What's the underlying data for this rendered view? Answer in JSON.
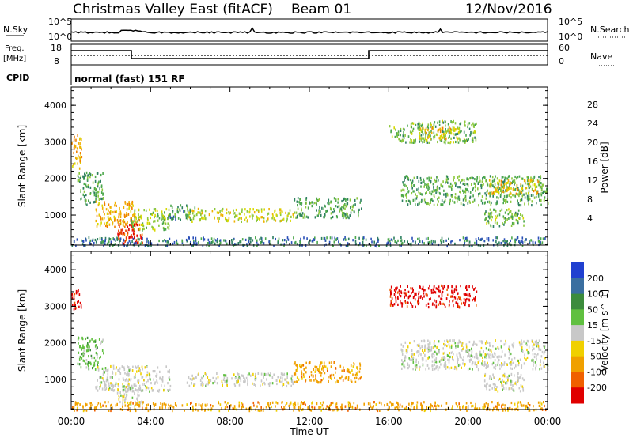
{
  "header": {
    "title": "Christmas Valley East (fitACF)",
    "beam": "Beam 01",
    "date": "12/Nov/2016"
  },
  "top_panels": {
    "nsky_label": "N.Sky",
    "nsky_ticks": [
      "10^5",
      "10^0"
    ],
    "nsearch_label": "N.Search",
    "nsearch_ticks": [
      "10^5",
      "10^0"
    ],
    "freq_label": [
      "Freq.",
      "[MHz]"
    ],
    "freq_ticks": [
      "18",
      "8"
    ],
    "nave_label": "Nave",
    "nave_ticks": [
      "60",
      "0"
    ],
    "cpid_label": "CPID",
    "cpid_text": "normal (fast) 151 RF"
  },
  "chart_data": [
    {
      "type": "heatmap",
      "name": "power",
      "ylabel": "Slant Range [km]",
      "yticks": [
        1000,
        2000,
        3000,
        4000
      ],
      "ylim": [
        180,
        4500
      ],
      "xlabel": "Time UT",
      "xticks": [
        "00:00",
        "04:00",
        "08:00",
        "12:00",
        "16:00",
        "20:00",
        "00:00"
      ],
      "xlim_hours": [
        0,
        24
      ],
      "colorbar": {
        "label": "Power [dB]",
        "ticks": [
          4,
          8,
          12,
          16,
          20,
          24,
          28
        ],
        "range": [
          0,
          30
        ],
        "colors": [
          "#1a1aff",
          "#2a50b8",
          "#2e7f60",
          "#4ca84c",
          "#8cc83c",
          "#d8d800",
          "#f0b000",
          "#f08000",
          "#e84000",
          "#e00000"
        ]
      },
      "regions": [
        {
          "t": [
            0.0,
            0.5
          ],
          "r": [
            2300,
            3300
          ],
          "level": 20
        },
        {
          "t": [
            0.3,
            1.6
          ],
          "r": [
            1300,
            2200
          ],
          "level": 10
        },
        {
          "t": [
            1.2,
            3.2
          ],
          "r": [
            700,
            1400
          ],
          "level": 20
        },
        {
          "t": [
            2.3,
            3.6
          ],
          "r": [
            250,
            900
          ],
          "level": 26
        },
        {
          "t": [
            3.0,
            5.0
          ],
          "r": [
            600,
            1200
          ],
          "level": 14
        },
        {
          "t": [
            4.8,
            6.2
          ],
          "r": [
            900,
            1300
          ],
          "level": 9
        },
        {
          "t": [
            5.8,
            11.2
          ],
          "r": [
            850,
            1200
          ],
          "level": 16
        },
        {
          "t": [
            11.2,
            14.6
          ],
          "r": [
            950,
            1500
          ],
          "level": 10
        },
        {
          "t": [
            16.0,
            20.4
          ],
          "r": [
            3000,
            3600
          ],
          "level": 12
        },
        {
          "t": [
            17.5,
            19.5
          ],
          "r": [
            3100,
            3450
          ],
          "level": 18
        },
        {
          "t": [
            16.6,
            24.0
          ],
          "r": [
            1300,
            2100
          ],
          "level": 11
        },
        {
          "t": [
            21.0,
            23.5
          ],
          "r": [
            1600,
            2000
          ],
          "level": 18
        },
        {
          "t": [
            20.8,
            22.8
          ],
          "r": [
            700,
            1200
          ],
          "level": 12
        },
        {
          "t": [
            0.0,
            24.0
          ],
          "r": [
            180,
            420
          ],
          "level": 7
        }
      ]
    },
    {
      "type": "heatmap",
      "name": "velocity",
      "ylabel": "Slant Range [km]",
      "yticks": [
        1000,
        2000,
        3000,
        4000
      ],
      "ylim": [
        180,
        4500
      ],
      "xlabel": "Time UT",
      "xticks": [
        "00:00",
        "04:00",
        "08:00",
        "12:00",
        "16:00",
        "20:00",
        "00:00"
      ],
      "xlim_hours": [
        0,
        24
      ],
      "colorbar": {
        "label": "Velocity [m s^-1]",
        "ticks": [
          "200",
          "100",
          "50",
          "15",
          "-15",
          "-50",
          "-100",
          "-200"
        ],
        "colors": [
          "#2040d0",
          "#3a6fa0",
          "#3c8c3c",
          "#60c040",
          "#c8c8c8",
          "#f0d000",
          "#f0a000",
          "#f06000",
          "#e00000"
        ]
      },
      "regions": [
        {
          "t": [
            0.0,
            0.5
          ],
          "r": [
            2900,
            3500
          ],
          "level": 8
        },
        {
          "t": [
            0.3,
            1.6
          ],
          "r": [
            1300,
            2200
          ],
          "level": 3
        },
        {
          "t": [
            1.2,
            5.0
          ],
          "r": [
            700,
            1400
          ],
          "level": 4
        },
        {
          "t": [
            2.3,
            3.6
          ],
          "r": [
            300,
            900
          ],
          "level": 4
        },
        {
          "t": [
            5.8,
            11.2
          ],
          "r": [
            850,
            1200
          ],
          "level": 4
        },
        {
          "t": [
            11.2,
            14.6
          ],
          "r": [
            950,
            1500
          ],
          "level": 6
        },
        {
          "t": [
            16.0,
            20.4
          ],
          "r": [
            3000,
            3600
          ],
          "level": 8
        },
        {
          "t": [
            16.6,
            24.0
          ],
          "r": [
            1300,
            2100
          ],
          "level": 4
        },
        {
          "t": [
            20.8,
            22.8
          ],
          "r": [
            700,
            1200
          ],
          "level": 4
        },
        {
          "t": [
            0.0,
            24.0
          ],
          "r": [
            180,
            420
          ],
          "level": 6
        }
      ]
    }
  ]
}
